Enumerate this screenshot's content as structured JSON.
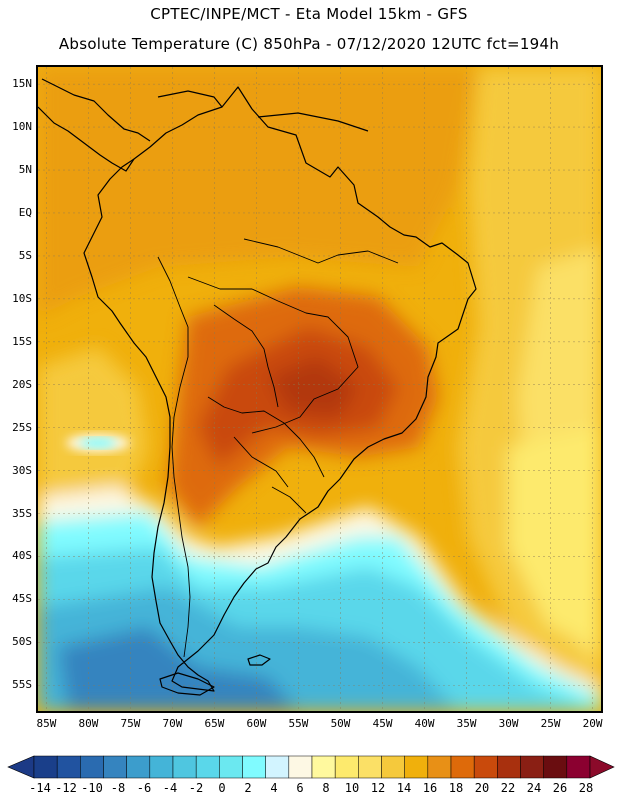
{
  "header": {
    "title_line1": "CPTEC/INPE/MCT -  Eta Model 15km - GFS",
    "title_line2": "Absolute Temperature (C) 850hPa - 07/12/2020 12UTC fct=194h"
  },
  "map": {
    "lon_range": [
      -86,
      -19
    ],
    "lat_range": [
      -58,
      17
    ],
    "lat_ticks": [
      {
        "value": 15,
        "label": "15N"
      },
      {
        "value": 10,
        "label": "10N"
      },
      {
        "value": 5,
        "label": "5N"
      },
      {
        "value": 0,
        "label": "EQ"
      },
      {
        "value": -5,
        "label": "5S"
      },
      {
        "value": -10,
        "label": "10S"
      },
      {
        "value": -15,
        "label": "15S"
      },
      {
        "value": -20,
        "label": "20S"
      },
      {
        "value": -25,
        "label": "25S"
      },
      {
        "value": -30,
        "label": "30S"
      },
      {
        "value": -35,
        "label": "35S"
      },
      {
        "value": -40,
        "label": "40S"
      },
      {
        "value": -45,
        "label": "45S"
      },
      {
        "value": -50,
        "label": "50S"
      },
      {
        "value": -55,
        "label": "55S"
      }
    ],
    "lon_ticks": [
      {
        "value": -85,
        "label": "85W"
      },
      {
        "value": -80,
        "label": "80W"
      },
      {
        "value": -75,
        "label": "75W"
      },
      {
        "value": -70,
        "label": "70W"
      },
      {
        "value": -65,
        "label": "65W"
      },
      {
        "value": -60,
        "label": "60W"
      },
      {
        "value": -55,
        "label": "55W"
      },
      {
        "value": -50,
        "label": "50W"
      },
      {
        "value": -45,
        "label": "45W"
      },
      {
        "value": -40,
        "label": "40W"
      },
      {
        "value": -35,
        "label": "35W"
      },
      {
        "value": -30,
        "label": "30W"
      },
      {
        "value": -25,
        "label": "25W"
      },
      {
        "value": -20,
        "label": "20W"
      }
    ]
  },
  "colorbar": {
    "levels": [
      -14,
      -12,
      -10,
      -8,
      -6,
      -4,
      -2,
      0,
      2,
      4,
      6,
      8,
      10,
      12,
      14,
      16,
      18,
      20,
      22,
      24,
      26,
      28
    ],
    "colors": [
      "#1a3f8a",
      "#2153a0",
      "#2a6bb0",
      "#3584bf",
      "#3c9dcc",
      "#44b4d8",
      "#4fc6e0",
      "#5ad7ea",
      "#6be8f0",
      "#80fbff",
      "#d2f4ff",
      "#fdf8e4",
      "#fff99e",
      "#fdea6d",
      "#fbe066",
      "#f5c93c",
      "#f0b00c",
      "#e89016",
      "#de6a0a",
      "#c94a0c",
      "#a8300e",
      "#8a1f14",
      "#6a0d10",
      "#8b0030"
    ],
    "low_color": "#1c3a86",
    "high_color": "#8b0a2a"
  }
}
